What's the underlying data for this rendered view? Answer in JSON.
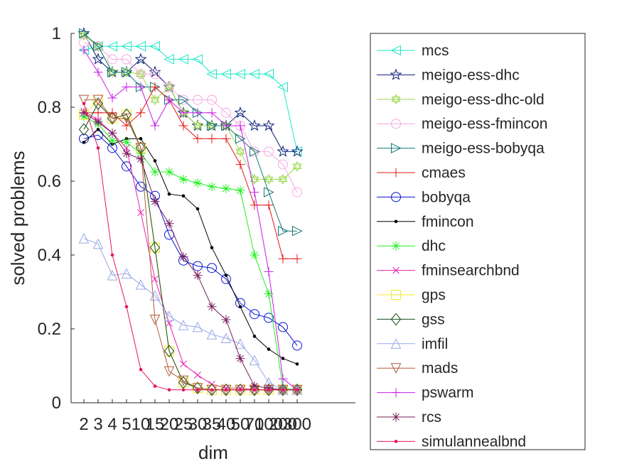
{
  "chart_data": {
    "type": "line",
    "xlabel": "dim",
    "ylabel": "solved problems",
    "x_tick_labels": [
      "2",
      "3",
      "4",
      "5",
      "10",
      "15",
      "20",
      "25",
      "30",
      "35",
      "40",
      "50",
      "70",
      "100",
      "200",
      "300"
    ],
    "ylim": [
      0,
      1
    ],
    "y_tick_labels": [
      "0",
      "0.2",
      "0.4",
      "0.6",
      "0.8",
      "1"
    ],
    "y_ticks": [
      0,
      0.2,
      0.4,
      0.6,
      0.8,
      1
    ],
    "grid": false,
    "legend_position": "right",
    "series": [
      {
        "name": "mcs",
        "color": "#1ee8c8",
        "marker": "triangle-left",
        "values": [
          0.955,
          0.965,
          0.965,
          0.965,
          0.965,
          0.965,
          0.93,
          0.93,
          0.93,
          0.89,
          0.89,
          0.89,
          0.89,
          0.89,
          0.855,
          0.68
        ]
      },
      {
        "name": "meigo-ess-dhc",
        "color": "#0b1f78",
        "marker": "star",
        "values": [
          1.0,
          0.93,
          0.895,
          0.895,
          0.93,
          0.895,
          0.855,
          0.785,
          0.75,
          0.75,
          0.75,
          0.785,
          0.75,
          0.75,
          0.68,
          0.68
        ]
      },
      {
        "name": "meigo-ess-dhc-old",
        "color": "#9ad84a",
        "marker": "hexagram",
        "values": [
          0.995,
          0.965,
          0.895,
          0.895,
          0.89,
          0.82,
          0.855,
          0.785,
          0.75,
          0.75,
          0.75,
          0.68,
          0.605,
          0.605,
          0.605,
          0.64
        ]
      },
      {
        "name": "meigo-ess-fmincon",
        "color": "#f5a8e0",
        "marker": "circle",
        "values": [
          0.975,
          0.965,
          0.93,
          0.93,
          0.89,
          0.89,
          0.855,
          0.82,
          0.82,
          0.82,
          0.785,
          0.75,
          0.68,
          0.68,
          0.645,
          0.57
        ]
      },
      {
        "name": "meigo-ess-bobyqa",
        "color": "#157878",
        "marker": "triangle-right",
        "values": [
          1.0,
          0.965,
          0.895,
          0.895,
          0.855,
          0.855,
          0.82,
          0.82,
          0.785,
          0.75,
          0.75,
          0.715,
          0.68,
          0.57,
          0.465,
          0.465
        ]
      },
      {
        "name": "cmaes",
        "color": "#e41818",
        "marker": "plus",
        "values": [
          0.785,
          0.785,
          0.785,
          0.75,
          0.785,
          0.855,
          0.82,
          0.75,
          0.715,
          0.715,
          0.715,
          0.645,
          0.535,
          0.535,
          0.39,
          0.39
        ]
      },
      {
        "name": "bobyqa",
        "color": "#0a14d2",
        "marker": "circle",
        "values": [
          0.715,
          0.725,
          0.69,
          0.64,
          0.585,
          0.56,
          0.455,
          0.385,
          0.37,
          0.365,
          0.335,
          0.27,
          0.24,
          0.23,
          0.205,
          0.155
        ]
      },
      {
        "name": "fmincon",
        "color": "#000000",
        "marker": "dot",
        "values": [
          0.705,
          0.74,
          0.7,
          0.715,
          0.715,
          0.655,
          0.565,
          0.56,
          0.525,
          0.42,
          0.345,
          0.26,
          0.18,
          0.145,
          0.12,
          0.105
        ]
      },
      {
        "name": "dhc",
        "color": "#1ef01e",
        "marker": "asterisk",
        "values": [
          0.775,
          0.755,
          0.71,
          0.705,
          0.675,
          0.625,
          0.625,
          0.605,
          0.595,
          0.585,
          0.58,
          0.575,
          0.4,
          0.295,
          0.04,
          0.035
        ]
      },
      {
        "name": "fminsearchbnd",
        "color": "#e81eb4",
        "marker": "x",
        "values": [
          0.79,
          0.765,
          0.73,
          0.69,
          0.515,
          0.335,
          0.215,
          0.105,
          0.075,
          0.05,
          0.04,
          0.04,
          0.035,
          0.035,
          0.035,
          0.035
        ]
      },
      {
        "name": "gps",
        "color": "#f5e82a",
        "marker": "square",
        "values": [
          0.78,
          0.82,
          0.77,
          0.78,
          0.69,
          0.42,
          0.14,
          0.055,
          0.04,
          0.035,
          0.035,
          0.035,
          0.035,
          0.035,
          0.035,
          0.035
        ]
      },
      {
        "name": "gss",
        "color": "#144d14",
        "marker": "diamond",
        "values": [
          0.74,
          0.81,
          0.77,
          0.78,
          0.69,
          0.42,
          0.14,
          0.055,
          0.04,
          0.035,
          0.035,
          0.035,
          0.035,
          0.035,
          0.035,
          0.035
        ]
      },
      {
        "name": "imfil",
        "color": "#98a8e8",
        "marker": "triangle-up",
        "values": [
          0.445,
          0.43,
          0.345,
          0.35,
          0.32,
          0.29,
          0.235,
          0.21,
          0.205,
          0.185,
          0.175,
          0.16,
          0.115,
          0.055,
          0.035,
          0.035
        ]
      },
      {
        "name": "mads",
        "color": "#b45a3c",
        "marker": "triangle-down",
        "values": [
          0.82,
          0.82,
          0.77,
          0.77,
          0.69,
          0.225,
          0.085,
          0.06,
          0.04,
          0.035,
          0.035,
          0.035,
          0.035,
          0.035,
          0.035,
          0.035
        ]
      },
      {
        "name": "pswarm",
        "color": "#c81ee8",
        "marker": "plus",
        "values": [
          0.955,
          0.895,
          0.825,
          0.855,
          0.855,
          0.75,
          0.82,
          0.785,
          0.785,
          0.785,
          0.75,
          0.75,
          0.57,
          0.355,
          0.065,
          0.035
        ]
      },
      {
        "name": "rcs",
        "color": "#781e5a",
        "marker": "asterisk",
        "values": [
          0.785,
          0.76,
          0.73,
          0.675,
          0.66,
          0.545,
          0.485,
          0.395,
          0.345,
          0.26,
          0.225,
          0.12,
          0.045,
          0.04,
          0.035,
          0.035
        ]
      },
      {
        "name": "simulannealbnd",
        "color": "#e8145a",
        "marker": "dot",
        "values": [
          0.81,
          0.69,
          0.4,
          0.26,
          0.09,
          0.045,
          0.035,
          0.035,
          0.035,
          0.035,
          0.035,
          0.035,
          0.035,
          0.035,
          0.035,
          0.035
        ]
      }
    ]
  }
}
